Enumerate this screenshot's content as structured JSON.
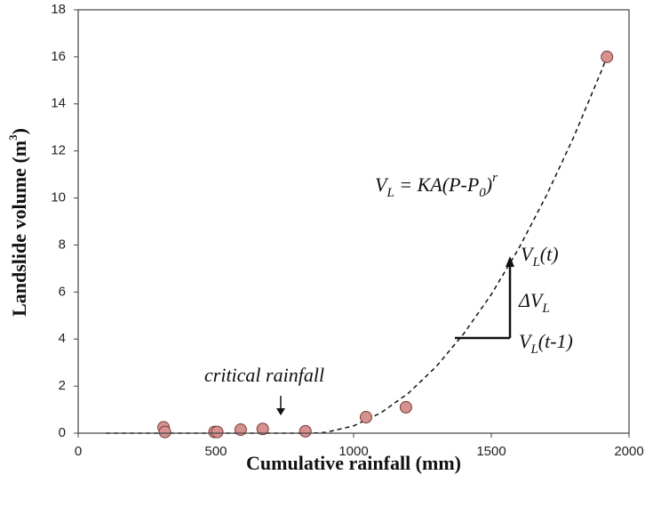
{
  "chart_data": {
    "type": "scatter",
    "x_label": "Cumulative rainfall (mm)",
    "y_label_parts": [
      "Landslide volume (m",
      "3",
      ")"
    ],
    "xlim": [
      0,
      2000
    ],
    "xticks": [
      0,
      500,
      1000,
      1500,
      2000
    ],
    "ylim": [
      0,
      18
    ],
    "yticks": [
      0,
      2,
      4,
      6,
      8,
      10,
      12,
      14,
      16,
      18
    ],
    "series": [
      {
        "type": "scatter",
        "color": "#d4918f",
        "x": [
          310,
          315,
          495,
          505,
          590,
          670,
          825,
          1045,
          1190,
          1920
        ],
        "values": [
          0.25,
          0.05,
          0.05,
          0.05,
          0.15,
          0.18,
          0.08,
          0.68,
          1.1,
          16
        ]
      },
      {
        "type": "line",
        "color": "#111111",
        "x": [
          100,
          300,
          500,
          700,
          850,
          900,
          1000,
          1100,
          1200,
          1300,
          1400,
          1500,
          1600,
          1700,
          1800,
          1900,
          1920
        ],
        "values": [
          0,
          0,
          0,
          0,
          0,
          0.035,
          0.31,
          0.87,
          1.71,
          2.83,
          4.23,
          5.9,
          7.86,
          10.1,
          12.61,
          15.41,
          16
        ]
      }
    ],
    "annotations": {
      "critical": "critical rainfall",
      "formula": [
        "V",
        "L",
        " = KA(P-P",
        "0",
        ")",
        "r"
      ],
      "vt": [
        "V",
        "L",
        "(t)"
      ],
      "dv": [
        "ΔV",
        "L"
      ],
      "vt1": [
        "V",
        "L",
        "(t-1)"
      ]
    }
  }
}
